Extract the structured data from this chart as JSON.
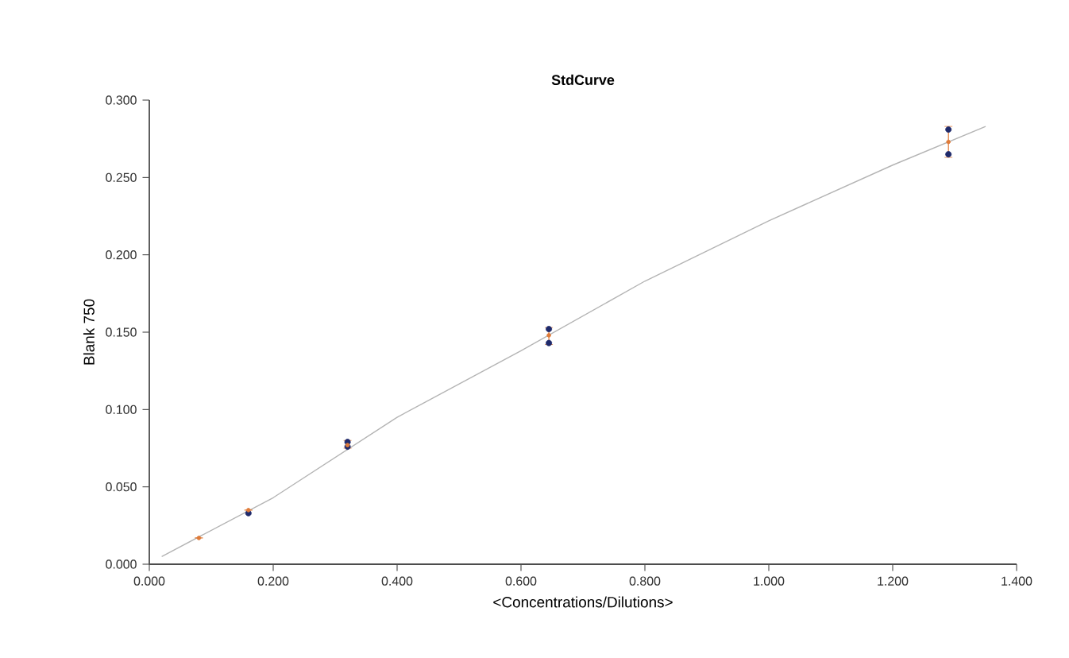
{
  "chart_data": {
    "type": "scatter",
    "title": "StdCurve",
    "xlabel": "<Concentrations/Dilutions>",
    "ylabel": "Blank 750",
    "xlim": [
      0,
      1.4
    ],
    "ylim": [
      0,
      0.3
    ],
    "xticks": [
      {
        "value": 0,
        "label": "0.000"
      },
      {
        "value": 0.2,
        "label": "0.200"
      },
      {
        "value": 0.4,
        "label": "0.400"
      },
      {
        "value": 0.6,
        "label": "0.600"
      },
      {
        "value": 0.8,
        "label": "0.800"
      },
      {
        "value": 1.0,
        "label": "1.000"
      },
      {
        "value": 1.2,
        "label": "1.200"
      },
      {
        "value": 1.4,
        "label": "1.400"
      }
    ],
    "yticks": [
      {
        "value": 0,
        "label": "0.000"
      },
      {
        "value": 0.05,
        "label": "0.050"
      },
      {
        "value": 0.1,
        "label": "0.100"
      },
      {
        "value": 0.15,
        "label": "0.150"
      },
      {
        "value": 0.2,
        "label": "0.200"
      },
      {
        "value": 0.25,
        "label": "0.250"
      },
      {
        "value": 0.3,
        "label": "0.300"
      }
    ],
    "series": [
      {
        "type": "line",
        "marker": "none",
        "color": "#b4b4b4",
        "x": [
          0.02,
          0.2,
          0.4,
          0.6,
          0.8,
          1.0,
          1.2,
          1.35
        ],
        "values": [
          0.005,
          0.043,
          0.095,
          0.138,
          0.183,
          0.222,
          0.258,
          0.283
        ]
      },
      {
        "marker": "circle",
        "color": "#1f2a6b",
        "x": [
          0.16,
          0.32,
          0.32,
          0.645,
          0.645,
          1.29,
          1.29
        ],
        "values": [
          0.033,
          0.079,
          0.076,
          0.152,
          0.143,
          0.281,
          0.265
        ]
      },
      {
        "marker": "circle",
        "color": "#e07b39",
        "x": [
          0.08,
          0.16,
          0.32,
          0.645,
          1.29
        ],
        "values": [
          0.017,
          0.035,
          0.077,
          0.148,
          0.273
        ],
        "errors": [
          null,
          null,
          [
            0.075,
            0.08
          ],
          [
            0.142,
            0.153
          ],
          [
            0.263,
            0.283
          ]
        ]
      }
    ]
  }
}
